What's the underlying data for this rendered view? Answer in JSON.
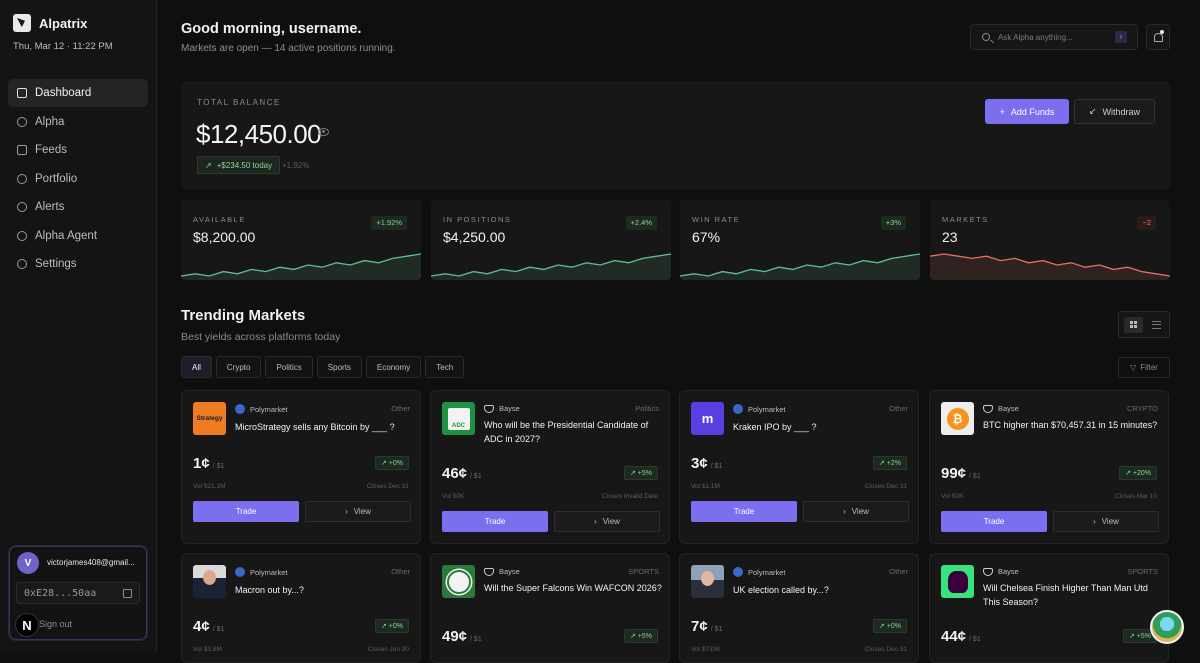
{
  "sidebar": {
    "brand": "Alpatrix",
    "datetime": "Thu, Mar 12 · 11:22 PM",
    "nav": [
      {
        "label": "Dashboard",
        "icon": "home-icon"
      },
      {
        "label": "Alpha",
        "icon": "alpha-icon"
      },
      {
        "label": "Feeds",
        "icon": "feeds-icon"
      },
      {
        "label": "Portfolio",
        "icon": "portfolio-icon"
      },
      {
        "label": "Alerts",
        "icon": "bell-icon"
      },
      {
        "label": "Alpha Agent",
        "icon": "user-icon"
      },
      {
        "label": "Settings",
        "icon": "gear-icon"
      }
    ],
    "user": {
      "initial": "V",
      "email": "victorjames408@gmail...",
      "wallet": "0xE28...50aa",
      "signout": "Sign out"
    },
    "n_badge": "N"
  },
  "header": {
    "greeting": "Good morning, username.",
    "subtitle": "Markets are open — 14 active positions running.",
    "search_placeholder": "Ask Alpha anything..."
  },
  "balance": {
    "label": "TOTAL BALANCE",
    "value": "$12,450.00",
    "today": "+$234.50 today",
    "pct": "+1.92%",
    "add_funds": "Add Funds",
    "withdraw": "Withdraw"
  },
  "stats": [
    {
      "label": "AVAILABLE",
      "value": "$8,200.00",
      "badge": "+1.92%",
      "trend": "up",
      "spark": [
        3,
        4,
        3,
        5,
        4,
        6,
        5,
        7,
        6,
        8,
        7,
        9,
        8,
        10,
        9,
        11,
        12,
        13
      ],
      "color": "#5fbf8f"
    },
    {
      "label": "IN POSITIONS",
      "value": "$4,250.00",
      "badge": "+2.4%",
      "trend": "up",
      "spark": [
        3,
        4,
        3,
        5,
        4,
        6,
        5,
        7,
        6,
        8,
        7,
        9,
        8,
        10,
        9,
        11,
        12,
        13
      ],
      "color": "#5fbf8f"
    },
    {
      "label": "WIN RATE",
      "value": "67%",
      "badge": "+3%",
      "trend": "up",
      "spark": [
        3,
        4,
        3,
        5,
        4,
        6,
        5,
        7,
        6,
        8,
        7,
        9,
        8,
        10,
        9,
        11,
        12,
        13
      ],
      "color": "#5fbf8f"
    },
    {
      "label": "MARKETS",
      "value": "23",
      "badge": "−2",
      "trend": "down",
      "spark": [
        11,
        12,
        11,
        10,
        11,
        9,
        10,
        8,
        9,
        7,
        8,
        6,
        7,
        5,
        6,
        4,
        3,
        2
      ],
      "color": "#e3705f"
    }
  ],
  "trending": {
    "title": "Trending Markets",
    "subtitle": "Best yields across platforms today",
    "tabs": [
      "All",
      "Crypto",
      "Politics",
      "Sports",
      "Economy",
      "Tech"
    ],
    "filter": "Filter",
    "trade_label": "Trade",
    "view_label": "View",
    "per_label": "/ $1"
  },
  "cards": [
    {
      "platform": "Polymarket",
      "category": "Other",
      "question": "MicroStrategy sells any Bitcoin by ___ ?",
      "price": "1¢",
      "change": "+0%",
      "vol": "Vol $21.1M",
      "closes": "Closes Dec 31",
      "img": "microstrategy-logo",
      "img_text": "Strategy"
    },
    {
      "platform": "Bayse",
      "category": "Politics",
      "question": "Who will be the Presidential Candidate of ADC in 2027?",
      "price": "46¢",
      "change": "+5%",
      "vol": "Vol $0K",
      "closes": "Closes Invalid Date",
      "img": "adc-logo",
      "img_text": "ADC"
    },
    {
      "platform": "Polymarket",
      "category": "Other",
      "question": "Kraken IPO by ___ ?",
      "price": "3¢",
      "change": "+2%",
      "vol": "Vol $1.1M",
      "closes": "Closes Dec 31",
      "img": "kraken-logo",
      "img_text": "m"
    },
    {
      "platform": "Bayse",
      "category": "CRYPTO",
      "question": "BTC higher than $70,457.31 in 15 minutes?",
      "price": "99¢",
      "change": "+20%",
      "vol": "Vol $0K",
      "closes": "Closes Mar 10",
      "img": "bitcoin-logo",
      "img_text": "₿"
    },
    {
      "platform": "Polymarket",
      "category": "Other",
      "question": "Macron out by...?",
      "price": "4¢",
      "change": "+0%",
      "vol": "Vol $3.8M",
      "closes": "Closes Jun 30",
      "img": "macron-photo",
      "img_text": ""
    },
    {
      "platform": "Bayse",
      "category": "SPORTS",
      "question": "Will the Super Falcons Win WAFCON 2026?",
      "price": "49¢",
      "change": "+5%",
      "vol": "",
      "closes": "",
      "img": "nff-logo",
      "img_text": ""
    },
    {
      "platform": "Polymarket",
      "category": "Other",
      "question": "UK election called by...?",
      "price": "7¢",
      "change": "+0%",
      "vol": "Vol $733K",
      "closes": "Closes Dec 31",
      "img": "uk-politician-photo",
      "img_text": ""
    },
    {
      "platform": "Bayse",
      "category": "SPORTS",
      "question": "Will Chelsea Finish Higher Than Man Utd This Season?",
      "price": "44¢",
      "change": "+5%",
      "vol": "",
      "closes": "",
      "img": "premier-league-logo",
      "img_text": ""
    }
  ]
}
